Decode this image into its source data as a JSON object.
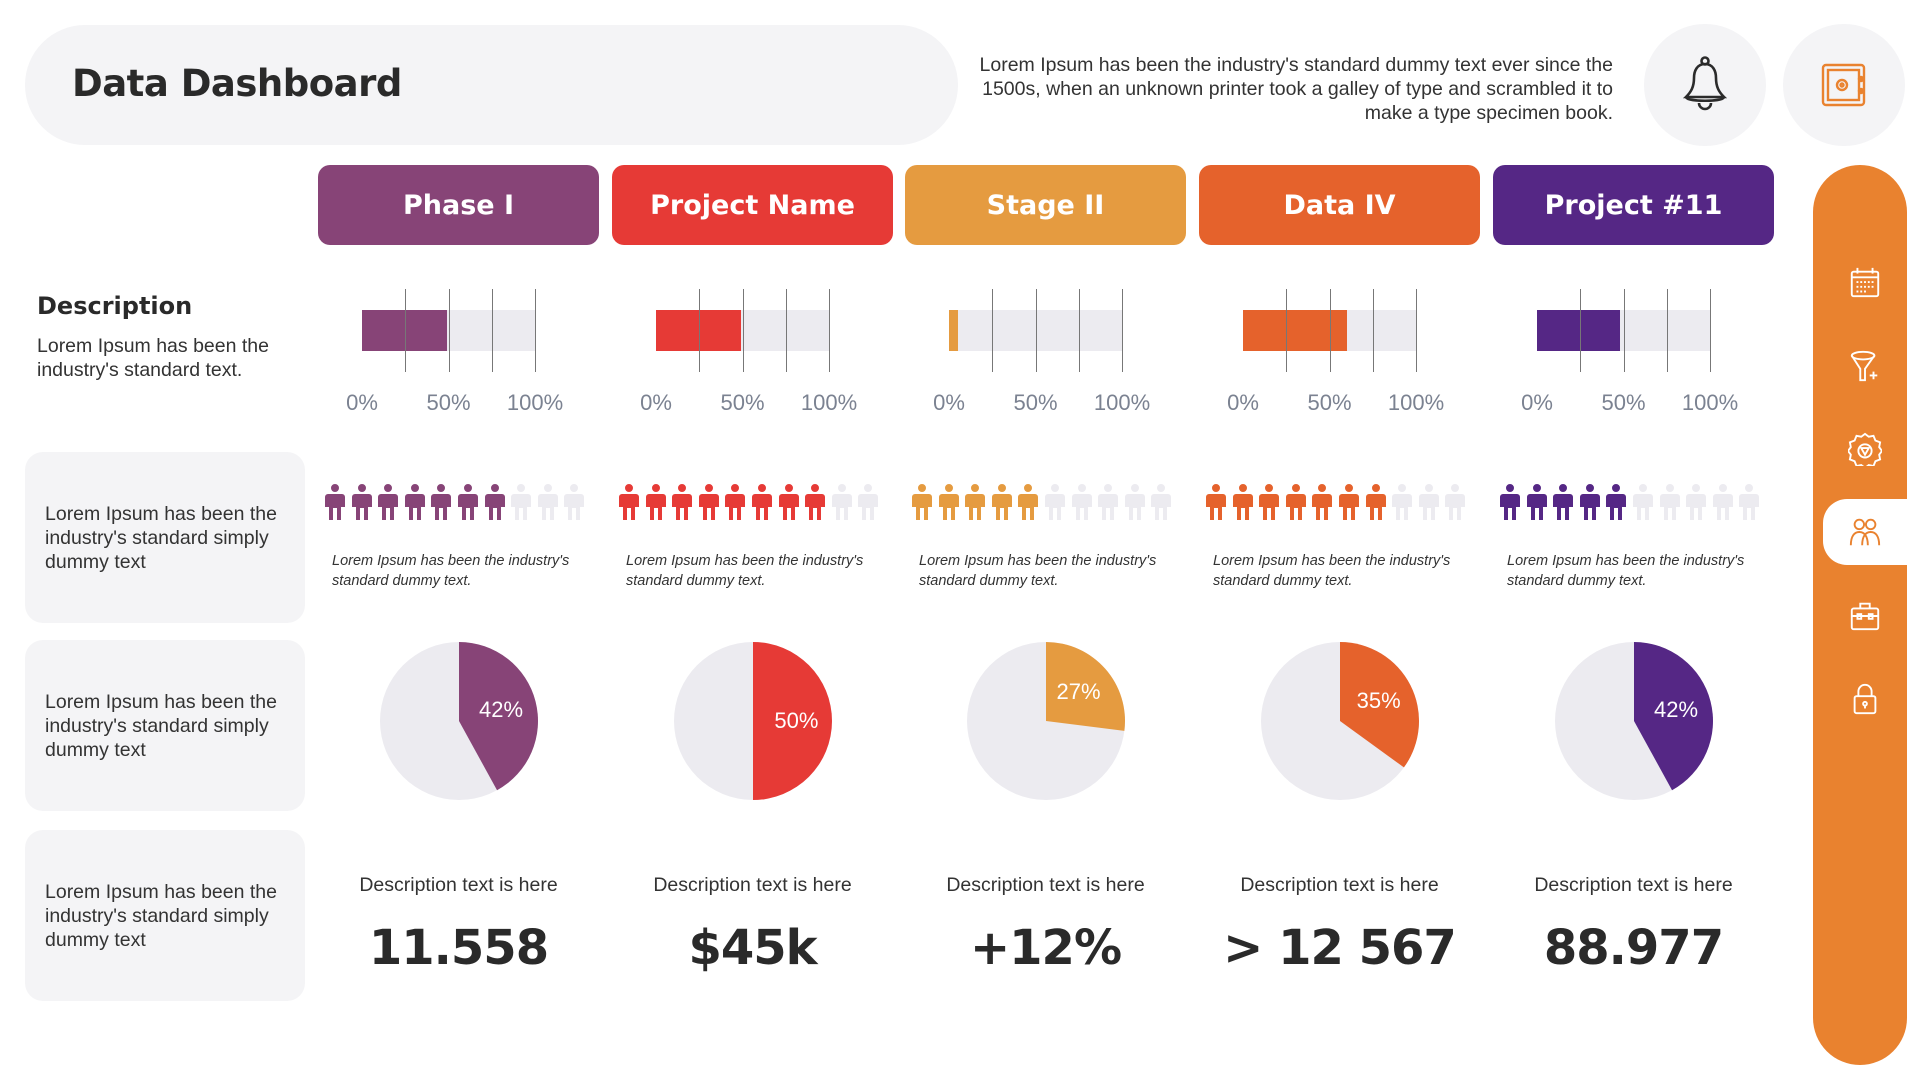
{
  "header": {
    "title": "Data Dashboard",
    "blurb": "Lorem Ipsum has been the industry's standard dummy text ever since the 1500s, when an unknown printer took a galley of type and scrambled it to make a type specimen book."
  },
  "top_actions": [
    {
      "icon": "bell-icon",
      "color": "#2b2b2b"
    },
    {
      "icon": "safe-icon",
      "color": "#E9822F"
    }
  ],
  "stage_header": {
    "label": "Stage",
    "color": "#E9822F"
  },
  "row_labels": {
    "description_title": "Description",
    "description_text": "Lorem Ipsum has been the industry's standard text.",
    "people_text": "Lorem Ipsum has been the industry's standard simply dummy text",
    "pie_text": "Lorem Ipsum has been the industry's standard simply dummy text",
    "metric_text": "Lorem Ipsum has been the industry's standard simply dummy text"
  },
  "gauge": {
    "ticks": [
      "0%",
      "50%",
      "100%"
    ],
    "range": [
      0,
      100
    ],
    "track_color": "#ECEBF0"
  },
  "people_total": 10,
  "inactive_color": "#ECEBF0",
  "columns": [
    {
      "label": "Phase I",
      "color": "#874477",
      "progress": 49,
      "people_filled": 7,
      "caption": "Lorem Ipsum has been the industry's standard dummy text.",
      "pie_percent": 42,
      "pie_label": "42%",
      "desc": "Description text is here",
      "metric": "11.558"
    },
    {
      "label": "Project Name",
      "color": "#E63A36",
      "progress": 49,
      "people_filled": 8,
      "caption": "Lorem Ipsum has been the industry's standard dummy text.",
      "pie_percent": 50,
      "pie_label": "50%",
      "desc": "Description text is here",
      "metric": "$45k"
    },
    {
      "label": "Stage II",
      "color": "#E59B40",
      "progress": 5,
      "people_filled": 5,
      "caption": "Lorem Ipsum has been the industry's standard dummy text.",
      "pie_percent": 27,
      "pie_label": "27%",
      "desc": "Description text is here",
      "metric": "+12%"
    },
    {
      "label": "Data IV",
      "color": "#E5622C",
      "progress": 60,
      "people_filled": 7,
      "caption": "Lorem Ipsum has been the industry's standard dummy text.",
      "pie_percent": 35,
      "pie_label": "35%",
      "desc": "Description text is here",
      "metric": "> 12 567"
    },
    {
      "label": "Project #11",
      "color": "#552785",
      "progress": 48,
      "people_filled": 5,
      "caption": "Lorem Ipsum has been the industry's standard dummy text.",
      "pie_percent": 42,
      "pie_label": "42%",
      "desc": "Description text is here",
      "metric": "88.977"
    }
  ],
  "sidebar": {
    "color": "#E9822F",
    "items": [
      {
        "icon": "calendar-icon",
        "active": false
      },
      {
        "icon": "funnel-plus-icon",
        "active": false
      },
      {
        "icon": "gear-icon",
        "active": false
      },
      {
        "icon": "users-icon",
        "active": true
      },
      {
        "icon": "toolbox-icon",
        "active": false
      },
      {
        "icon": "lock-icon",
        "active": false
      }
    ]
  }
}
